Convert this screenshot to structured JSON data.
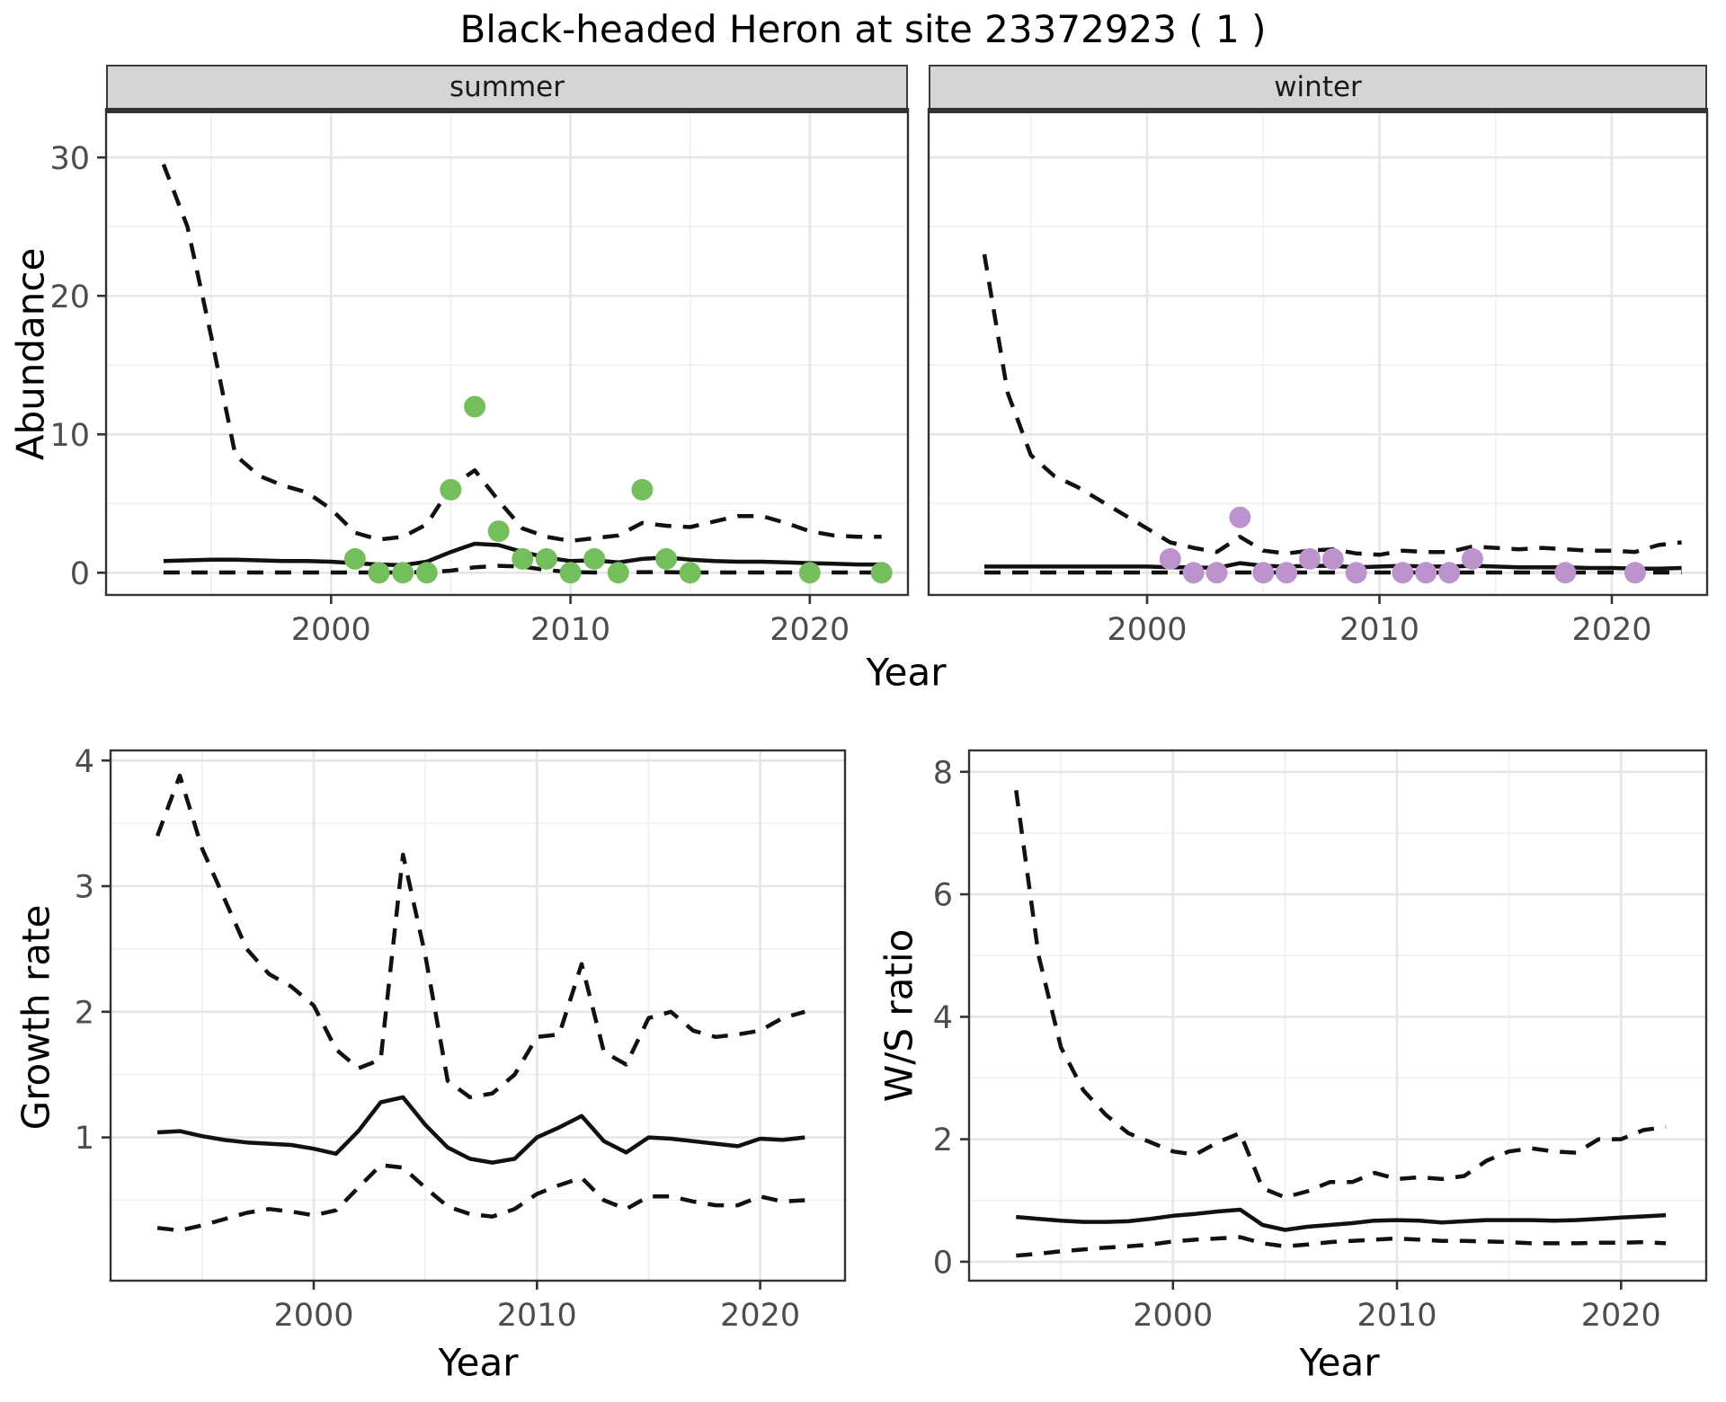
{
  "title": "Black-headed Heron at site 23372923 ( 1 )",
  "colors": {
    "summer_point": "#74bf5c",
    "winter_point": "#bd93ce",
    "line": "#111111",
    "grid_major": "#e6e6e6",
    "grid_minor": "#efefef",
    "panel_border": "#333333",
    "strip_bg": "#d5d5d5",
    "tick_text": "#4d4d4d"
  },
  "top": {
    "facets": [
      {
        "label": "summer"
      },
      {
        "label": "winter"
      }
    ],
    "ylabel": "Abundance",
    "xlabel": "Year"
  },
  "bottom_left": {
    "ylabel": "Growth rate",
    "xlabel": "Year"
  },
  "bottom_right": {
    "ylabel": "W/S ratio",
    "xlabel": "Year"
  },
  "chart_data": [
    {
      "id": "abundance-summer",
      "type": "line",
      "facet": "summer",
      "xlabel": "Year",
      "ylabel": "Abundance",
      "x": [
        1993,
        1994,
        1995,
        1996,
        1997,
        1998,
        1999,
        2000,
        2001,
        2002,
        2003,
        2004,
        2005,
        2006,
        2007,
        2008,
        2009,
        2010,
        2011,
        2012,
        2013,
        2014,
        2015,
        2016,
        2017,
        2018,
        2019,
        2020,
        2021,
        2022,
        2023
      ],
      "series": [
        {
          "name": "upper_ci",
          "style": "dashed",
          "values": [
            29.5,
            25,
            17,
            8.5,
            7,
            6.3,
            5.8,
            4.6,
            2.9,
            2.4,
            2.6,
            3.5,
            6.2,
            7.4,
            5.2,
            3.2,
            2.6,
            2.3,
            2.5,
            2.7,
            3.6,
            3.4,
            3.3,
            3.7,
            4.1,
            4.1,
            3.6,
            3,
            2.7,
            2.6,
            2.6
          ]
        },
        {
          "name": "mean",
          "style": "solid",
          "values": [
            0.85,
            0.9,
            0.95,
            0.95,
            0.9,
            0.85,
            0.85,
            0.8,
            0.7,
            0.6,
            0.55,
            0.8,
            1.5,
            2.1,
            2,
            1.5,
            1.1,
            0.85,
            0.9,
            0.75,
            1,
            1.1,
            0.95,
            0.85,
            0.8,
            0.8,
            0.75,
            0.7,
            0.65,
            0.6,
            0.6
          ]
        },
        {
          "name": "lower_ci",
          "style": "dashed",
          "values": [
            0.02,
            0.02,
            0.02,
            0.02,
            0.02,
            0.02,
            0.02,
            0.02,
            0.02,
            0.02,
            0.02,
            0.05,
            0.15,
            0.4,
            0.5,
            0.45,
            0.2,
            0.05,
            0.02,
            0.02,
            0.05,
            0.05,
            0.02,
            0.02,
            0.02,
            0.02,
            0.02,
            0.02,
            0.02,
            0.02,
            0.02
          ]
        }
      ],
      "points": {
        "name": "observed-counts-summer",
        "color_key": "summer_point",
        "x": [
          2001,
          2002,
          2003,
          2004,
          2005,
          2006,
          2007,
          2008,
          2009,
          2010,
          2011,
          2012,
          2013,
          2014,
          2015,
          2020,
          2023
        ],
        "y": [
          1,
          0,
          0,
          0,
          6,
          12,
          3,
          1,
          1,
          0,
          1,
          0,
          6,
          1,
          0,
          0,
          0
        ]
      },
      "xlim": [
        1990.6,
        2024.1
      ],
      "ylim": [
        -1.6,
        33.45
      ],
      "x_ticks": [
        2000,
        2010,
        2020
      ],
      "x_minor": [
        1995,
        2005,
        2015
      ],
      "y_ticks": [
        0,
        10,
        20,
        30
      ],
      "y_minor": [
        5,
        15,
        25
      ],
      "show_y_labels": true,
      "thick_top": true
    },
    {
      "id": "abundance-winter",
      "type": "line",
      "facet": "winter",
      "xlabel": "Year",
      "ylabel": "Abundance",
      "x": [
        1993,
        1994,
        1995,
        1996,
        1997,
        1998,
        1999,
        2000,
        2001,
        2002,
        2003,
        2004,
        2005,
        2006,
        2007,
        2008,
        2009,
        2010,
        2011,
        2012,
        2013,
        2014,
        2015,
        2016,
        2017,
        2018,
        2019,
        2020,
        2021,
        2022,
        2023
      ],
      "series": [
        {
          "name": "upper_ci",
          "style": "dashed",
          "values": [
            23,
            13,
            8.5,
            7,
            6.2,
            5.2,
            4.2,
            3.2,
            2.2,
            1.8,
            1.5,
            2.6,
            1.6,
            1.4,
            1.6,
            1.7,
            1.4,
            1.3,
            1.6,
            1.5,
            1.5,
            1.9,
            1.8,
            1.7,
            1.8,
            1.7,
            1.6,
            1.6,
            1.5,
            2,
            2.2
          ]
        },
        {
          "name": "mean",
          "style": "solid",
          "values": [
            0.45,
            0.45,
            0.45,
            0.45,
            0.45,
            0.45,
            0.45,
            0.45,
            0.4,
            0.4,
            0.35,
            0.7,
            0.5,
            0.45,
            0.5,
            0.5,
            0.4,
            0.45,
            0.5,
            0.45,
            0.45,
            0.5,
            0.45,
            0.4,
            0.4,
            0.4,
            0.35,
            0.35,
            0.3,
            0.3,
            0.35
          ]
        },
        {
          "name": "lower_ci",
          "style": "dashed",
          "values": [
            0.02,
            0.02,
            0.02,
            0.02,
            0.02,
            0.02,
            0.02,
            0.02,
            0.02,
            0.02,
            0.02,
            0.02,
            0.02,
            0.02,
            0.02,
            0.02,
            0.02,
            0.02,
            0.02,
            0.02,
            0.02,
            0.02,
            0.02,
            0.02,
            0.02,
            0.02,
            0.02,
            0.02,
            0.02,
            0.02,
            0.02
          ]
        }
      ],
      "points": {
        "name": "observed-counts-winter",
        "color_key": "winter_point",
        "x": [
          2001,
          2002,
          2003,
          2004,
          2005,
          2006,
          2007,
          2008,
          2009,
          2011,
          2012,
          2013,
          2014,
          2018,
          2021
        ],
        "y": [
          1,
          0,
          0,
          4,
          0,
          0,
          1,
          1,
          0,
          0,
          0,
          0,
          1,
          0,
          0
        ]
      },
      "xlim": [
        1990.6,
        2024.1
      ],
      "ylim": [
        -1.6,
        33.45
      ],
      "x_ticks": [
        2000,
        2010,
        2020
      ],
      "x_minor": [
        1995,
        2005,
        2015
      ],
      "y_ticks": [
        0,
        10,
        20,
        30
      ],
      "y_minor": [
        5,
        15,
        25
      ],
      "show_y_labels": false,
      "thick_top": true
    },
    {
      "id": "growth-rate",
      "type": "line",
      "facet": null,
      "xlabel": "Year",
      "ylabel": "Growth rate",
      "x": [
        1993,
        1994,
        1995,
        1996,
        1997,
        1998,
        1999,
        2000,
        2001,
        2002,
        2003,
        2004,
        2005,
        2006,
        2007,
        2008,
        2009,
        2010,
        2011,
        2012,
        2013,
        2014,
        2015,
        2016,
        2017,
        2018,
        2019,
        2020,
        2021,
        2022
      ],
      "series": [
        {
          "name": "upper_ci",
          "style": "dashed",
          "values": [
            3.4,
            3.88,
            3.3,
            2.9,
            2.5,
            2.3,
            2.2,
            2.05,
            1.7,
            1.55,
            1.62,
            3.25,
            2.45,
            1.45,
            1.32,
            1.35,
            1.5,
            1.8,
            1.82,
            2.38,
            1.68,
            1.58,
            1.95,
            2,
            1.85,
            1.8,
            1.82,
            1.85,
            1.95,
            2
          ]
        },
        {
          "name": "mean",
          "style": "solid",
          "values": [
            1.04,
            1.05,
            1.01,
            0.98,
            0.96,
            0.95,
            0.94,
            0.91,
            0.87,
            1.05,
            1.28,
            1.32,
            1.1,
            0.92,
            0.83,
            0.8,
            0.83,
            1,
            1.08,
            1.17,
            0.97,
            0.88,
            1,
            0.99,
            0.97,
            0.95,
            0.93,
            0.99,
            0.98,
            1
          ]
        },
        {
          "name": "lower_ci",
          "style": "dashed",
          "values": [
            0.28,
            0.26,
            0.3,
            0.35,
            0.4,
            0.43,
            0.41,
            0.38,
            0.42,
            0.6,
            0.78,
            0.76,
            0.6,
            0.45,
            0.39,
            0.37,
            0.43,
            0.55,
            0.62,
            0.68,
            0.5,
            0.43,
            0.53,
            0.53,
            0.49,
            0.46,
            0.46,
            0.53,
            0.49,
            0.5
          ]
        }
      ],
      "points": null,
      "xlim": [
        1990.9,
        2023.8
      ],
      "ylim": [
        -0.14,
        4.08
      ],
      "x_ticks": [
        2000,
        2010,
        2020
      ],
      "x_minor": [
        1995,
        2005,
        2015
      ],
      "y_ticks": [
        1,
        2,
        3,
        4
      ],
      "y_minor": [
        0.5,
        1.5,
        2.5,
        3.5
      ],
      "show_y_labels": true,
      "thick_top": false
    },
    {
      "id": "ws-ratio",
      "type": "line",
      "facet": null,
      "xlabel": "Year",
      "ylabel": "W/S ratio",
      "x": [
        1993,
        1994,
        1995,
        1996,
        1997,
        1998,
        1999,
        2000,
        2001,
        2002,
        2003,
        2004,
        2005,
        2006,
        2007,
        2008,
        2009,
        2010,
        2011,
        2012,
        2013,
        2014,
        2015,
        2016,
        2017,
        2018,
        2019,
        2020,
        2021,
        2022
      ],
      "series": [
        {
          "name": "upper_ci",
          "style": "dashed",
          "values": [
            7.7,
            5,
            3.5,
            2.8,
            2.4,
            2.1,
            1.95,
            1.8,
            1.75,
            1.95,
            2.1,
            1.2,
            1.05,
            1.15,
            1.3,
            1.3,
            1.45,
            1.35,
            1.38,
            1.35,
            1.4,
            1.65,
            1.8,
            1.85,
            1.8,
            1.78,
            2,
            2,
            2.15,
            2.2
          ]
        },
        {
          "name": "mean",
          "style": "solid",
          "values": [
            0.73,
            0.7,
            0.67,
            0.65,
            0.65,
            0.66,
            0.7,
            0.75,
            0.78,
            0.82,
            0.85,
            0.6,
            0.52,
            0.57,
            0.6,
            0.63,
            0.67,
            0.68,
            0.67,
            0.64,
            0.66,
            0.68,
            0.68,
            0.68,
            0.67,
            0.68,
            0.7,
            0.72,
            0.74,
            0.76
          ]
        },
        {
          "name": "lower_ci",
          "style": "dashed",
          "values": [
            0.1,
            0.13,
            0.17,
            0.2,
            0.23,
            0.25,
            0.28,
            0.33,
            0.36,
            0.38,
            0.4,
            0.3,
            0.25,
            0.28,
            0.32,
            0.34,
            0.36,
            0.38,
            0.36,
            0.34,
            0.34,
            0.33,
            0.32,
            0.3,
            0.3,
            0.3,
            0.31,
            0.31,
            0.32,
            0.3
          ]
        }
      ],
      "points": null,
      "xlim": [
        1990.9,
        2023.8
      ],
      "ylim": [
        -0.31,
        8.35
      ],
      "x_ticks": [
        2000,
        2010,
        2020
      ],
      "x_minor": [
        1995,
        2005,
        2015
      ],
      "y_ticks": [
        0,
        2,
        4,
        6,
        8
      ],
      "y_minor": [
        1,
        3,
        5,
        7
      ],
      "show_y_labels": true,
      "thick_top": false
    }
  ]
}
